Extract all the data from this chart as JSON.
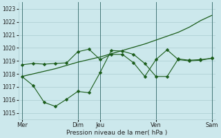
{
  "background_color": "#cce8ec",
  "grid_color": "#aaccd0",
  "line_color": "#1a5c1a",
  "marker_color": "#1a5c1a",
  "xlabel": "Pression niveau de la mer( hPa )",
  "ylim": [
    1014.5,
    1023.5
  ],
  "yticks": [
    1015,
    1016,
    1017,
    1018,
    1019,
    1020,
    1021,
    1022,
    1023
  ],
  "xtick_labels": [
    "Mer",
    "Dim",
    "Jeu",
    "Ven",
    "Sam"
  ],
  "xtick_positions": [
    0,
    5,
    7,
    12,
    17
  ],
  "vlines": [
    0,
    5,
    7,
    12,
    17
  ],
  "n_points": 18,
  "line1_x": [
    0,
    1,
    2,
    3,
    4,
    5,
    6,
    7,
    8,
    9,
    10,
    11,
    12,
    13,
    14,
    15,
    16,
    17
  ],
  "line1": [
    1017.8,
    1018.0,
    1018.2,
    1018.4,
    1018.65,
    1018.9,
    1019.1,
    1019.3,
    1019.55,
    1019.8,
    1020.05,
    1020.3,
    1020.6,
    1020.9,
    1021.2,
    1021.6,
    1022.1,
    1022.5
  ],
  "line2_x": [
    0,
    1,
    2,
    3,
    4,
    5,
    6,
    7,
    8,
    9,
    10,
    11,
    12,
    13,
    14,
    15,
    16,
    17
  ],
  "line2": [
    1018.7,
    1018.8,
    1018.75,
    1018.8,
    1018.85,
    1019.7,
    1019.9,
    1019.1,
    1019.5,
    1019.5,
    1018.85,
    1017.8,
    1019.1,
    1019.85,
    1019.1,
    1019.0,
    1019.05,
    1019.2
  ],
  "line3_x": [
    0,
    1,
    2,
    3,
    4,
    5,
    6,
    7,
    8,
    9,
    10,
    11,
    12,
    13,
    14,
    15,
    16,
    17
  ],
  "line3": [
    1017.8,
    1017.1,
    1015.8,
    1015.5,
    1016.05,
    1016.65,
    1016.55,
    1018.1,
    1019.8,
    1019.75,
    1019.5,
    1018.8,
    1017.8,
    1017.8,
    1019.15,
    1019.05,
    1019.1,
    1019.2
  ]
}
